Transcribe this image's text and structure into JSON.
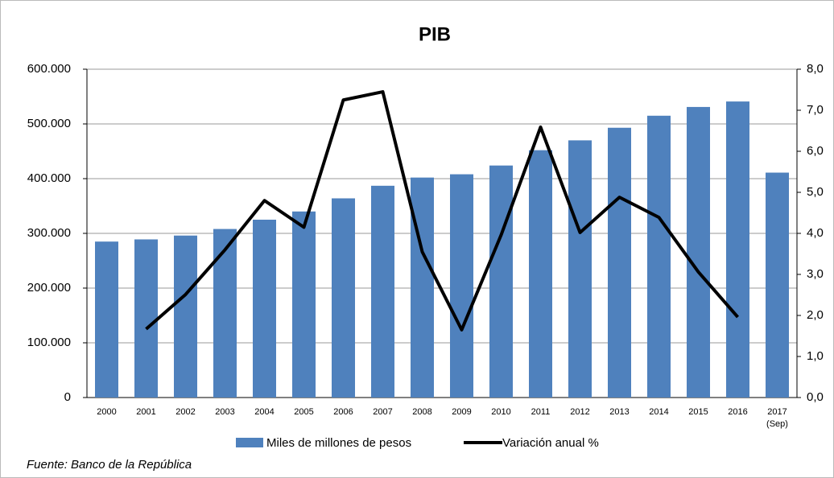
{
  "chart_data": {
    "type": "bar_line",
    "title": "PIB",
    "categories": [
      "2000",
      "2001",
      "2002",
      "2003",
      "2004",
      "2005",
      "2006",
      "2007",
      "2008",
      "2009",
      "2010",
      "2011",
      "2012",
      "2013",
      "2014",
      "2015",
      "2016",
      "2017 (Sep)"
    ],
    "series": [
      {
        "name": "Miles de millones de pesos",
        "type": "bar",
        "color": "#4f81bd",
        "values": [
          285000,
          289000,
          296000,
          308000,
          325000,
          340000,
          364000,
          387000,
          402000,
          408000,
          424000,
          452000,
          470000,
          493000,
          515000,
          531000,
          541000,
          411000
        ]
      },
      {
        "name": "Variación anual %",
        "type": "line",
        "color": "#000000",
        "axis": "y2",
        "values": [
          null,
          1.67,
          2.51,
          3.6,
          4.8,
          4.15,
          7.25,
          7.45,
          3.55,
          1.65,
          3.96,
          6.59,
          4.02,
          4.88,
          4.39,
          3.06,
          1.96,
          null
        ]
      }
    ],
    "ylim": [
      0,
      600000
    ],
    "yticks": [
      0,
      {
        "value": 100000,
        "label": "100.000"
      },
      {
        "value": 200000,
        "label": "200.000"
      },
      {
        "value": 300000,
        "label": "300.000"
      },
      {
        "value": 400000,
        "label": "400.000"
      },
      {
        "value": 500000,
        "label": "500.000"
      },
      {
        "value": 600000,
        "label": "600.000"
      }
    ],
    "y2lim": [
      0,
      8
    ],
    "y2ticks": [
      {
        "value": 0,
        "label": "0,0"
      },
      {
        "value": 1,
        "label": "1,0"
      },
      {
        "value": 2,
        "label": "2,0"
      },
      {
        "value": 3,
        "label": "3,0"
      },
      {
        "value": 4,
        "label": "4,0"
      },
      {
        "value": 5,
        "label": "5,0"
      },
      {
        "value": 6,
        "label": "6,0"
      },
      {
        "value": 7,
        "label": "7,0"
      },
      {
        "value": 8,
        "label": "8,0"
      }
    ],
    "grid": true,
    "legend": "bottom",
    "source": "Fuente: Banco de la República"
  }
}
